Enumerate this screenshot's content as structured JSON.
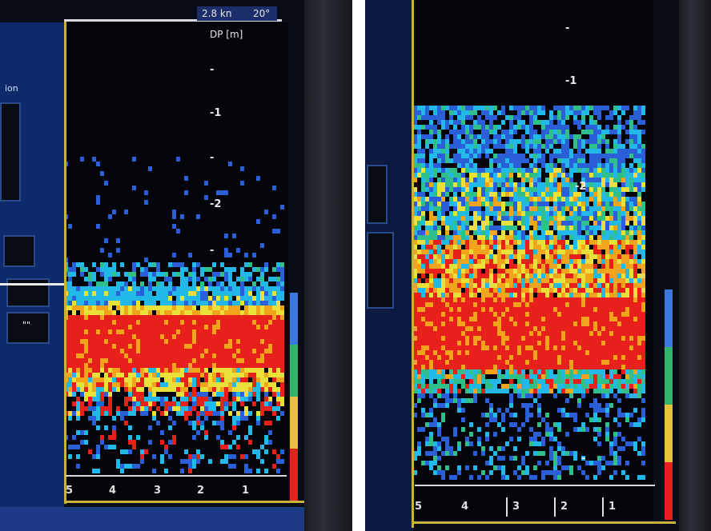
{
  "left_panel": {
    "header": {
      "speed": "2.8 kn",
      "angle": "20°",
      "depth_unit": "DP [m]"
    },
    "side_label": "ion",
    "depth_marks": [
      "-",
      "-1",
      "-",
      "-2",
      "-"
    ],
    "range_marks": [
      "5",
      "4",
      "3",
      "2",
      "1"
    ],
    "side_button_text": "\"\""
  },
  "right_panel": {
    "depth_marks": [
      "-",
      "-1",
      "-2",
      "-"
    ],
    "range_marks": [
      "5",
      "4",
      "3",
      "2",
      "1"
    ]
  },
  "colors": {
    "strong": "#e8201c",
    "high": "#f2a41c",
    "mid_high": "#e9e03a",
    "mid": "#2fc08a",
    "low": "#22b8e8",
    "weak": "#2b5fd8",
    "frame": "#c9b23a"
  }
}
